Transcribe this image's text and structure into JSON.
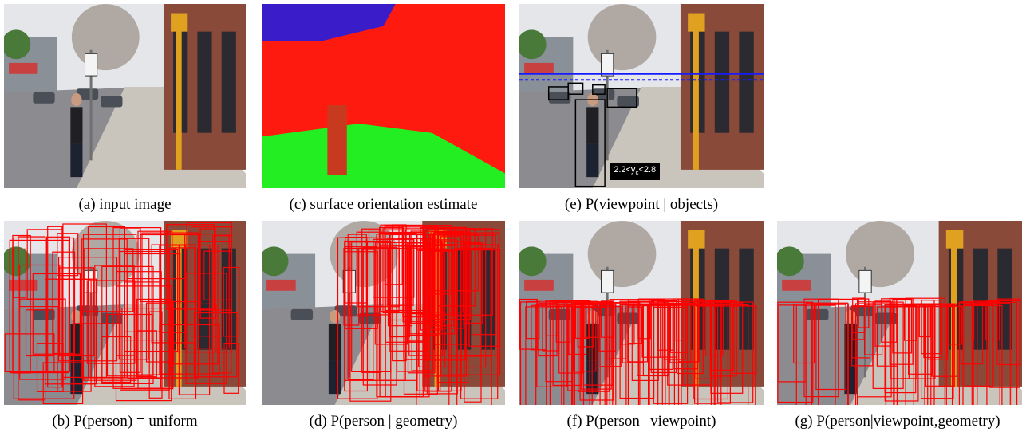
{
  "figure": {
    "panels": [
      {
        "id": "a",
        "caption": "(a) input image",
        "overlay": "none"
      },
      {
        "id": "c",
        "caption": "(c) surface orientation estimate",
        "overlay": "surface"
      },
      {
        "id": "e",
        "caption": "(e) P(viewpoint | objects)",
        "overlay": "viewpoint",
        "label_prefix": "2.2<y",
        "label_sub": "c",
        "label_suffix": "<2.8"
      },
      {
        "id": "b",
        "caption": "(b) P(person) = uniform",
        "overlay": "boxes"
      },
      {
        "id": "d",
        "caption": "(d) P(person | geometry)",
        "overlay": "boxes"
      },
      {
        "id": "f",
        "caption": "(f) P(person | viewpoint)",
        "overlay": "boxes"
      },
      {
        "id": "g",
        "caption": "(g) P(person|viewpoint,geometry)",
        "overlay": "boxes"
      }
    ],
    "colors": {
      "box": "#ff0000",
      "surface_vertical": "#ff1a10",
      "surface_ground": "#22ee22",
      "surface_sky": "#3a1dc8",
      "horizon": "#1a1aff",
      "sky": "#e4e6ea",
      "building": "#8a4a3a",
      "pole": "#e0a020"
    }
  }
}
